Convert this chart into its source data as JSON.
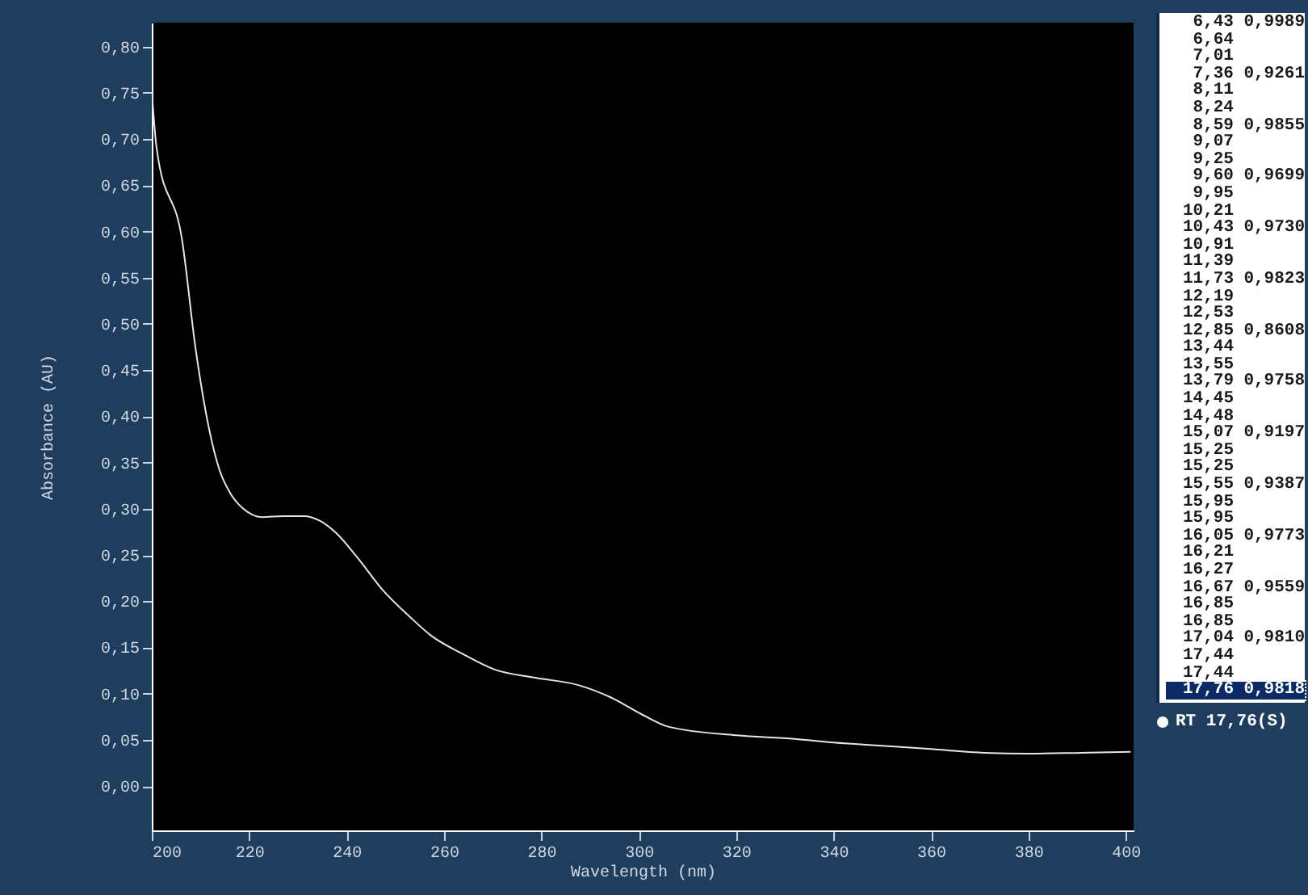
{
  "chart_data": [
    {
      "type": "line",
      "xlabel": "Wavelength (nm)",
      "ylabel": "Absorbance (AU)",
      "xlim": [
        200,
        401.6
      ],
      "ylim": [
        -0.048,
        0.826
      ],
      "xticks": [
        200,
        220,
        240,
        260,
        280,
        300,
        320,
        340,
        360,
        380,
        400
      ],
      "yticks": [
        {
          "value": 0,
          "label": "0,00"
        },
        {
          "value": 0.05,
          "label": "0,05"
        },
        {
          "value": 0.1,
          "label": "0,10"
        },
        {
          "value": 0.15,
          "label": "0,15"
        },
        {
          "value": 0.2,
          "label": "0,20"
        },
        {
          "value": 0.25,
          "label": "0,25"
        },
        {
          "value": 0.3,
          "label": "0,30"
        },
        {
          "value": 0.35,
          "label": "0,35"
        },
        {
          "value": 0.4,
          "label": "0,40"
        },
        {
          "value": 0.45,
          "label": "0,45"
        },
        {
          "value": 0.5,
          "label": "0,50"
        },
        {
          "value": 0.55,
          "label": "0,55"
        },
        {
          "value": 0.6,
          "label": "0,60"
        },
        {
          "value": 0.65,
          "label": "0,65"
        },
        {
          "value": 0.7,
          "label": "0,70"
        },
        {
          "value": 0.75,
          "label": "0,75"
        },
        {
          "value": 0.8,
          "label": "0,80"
        }
      ],
      "x": [
        200,
        201,
        206.3,
        209,
        211.7,
        213.9,
        216.1,
        218.8,
        222.6,
        226.9,
        231.3,
        234.5,
        237.8,
        242.1,
        247.6,
        253,
        257.3,
        263.8,
        270.4,
        279,
        287.7,
        294.2,
        300.8,
        306.2,
        320,
        332,
        340,
        352,
        360,
        371,
        380,
        391,
        401
      ],
      "series": [
        {
          "color": "#e6e6e6",
          "values": [
            0.751,
            0.69,
            0.588,
            0.473,
            0.388,
            0.342,
            0.317,
            0.3,
            0.291,
            0.292,
            0.292,
            0.287,
            0.274,
            0.248,
            0.211,
            0.183,
            0.163,
            0.143,
            0.126,
            0.117,
            0.109,
            0.096,
            0.077,
            0.064,
            0.055,
            0.051,
            0.047,
            0.043,
            0.04,
            0.036,
            0.035,
            0.036,
            0.037
          ]
        }
      ],
      "grid": false,
      "marker": "none",
      "line_style": "solid"
    },
    {
      "type": "other",
      "annotations": [
        "6,43  0,9989",
        "6,64",
        "7,01",
        "7,36  0,9261",
        "8,11",
        "8,24",
        "8,59  0,9855",
        "9,07",
        "9,25",
        "9,60  0,9699",
        "9,95",
        "10,21",
        "10,43  0,9730",
        "10,91",
        "11,39",
        "11,73  0,9823",
        "12,19",
        "12,53",
        "12,85  0,8608",
        "13,44",
        "13,55",
        "13,79  0,9758",
        "14,45",
        "14,48",
        "15,07  0,9197",
        "15,25",
        "15,25",
        "15,55  0,9387",
        "15,95",
        "15,95",
        "16,05  0,9773",
        "16,21",
        "16,27",
        "16,67  0,9559",
        "16,85",
        "16,85",
        "17,04  0,9810",
        "17,44",
        "17,44",
        "17,76  0,9818",
        "RT 17,76(S)"
      ]
    }
  ]
}
